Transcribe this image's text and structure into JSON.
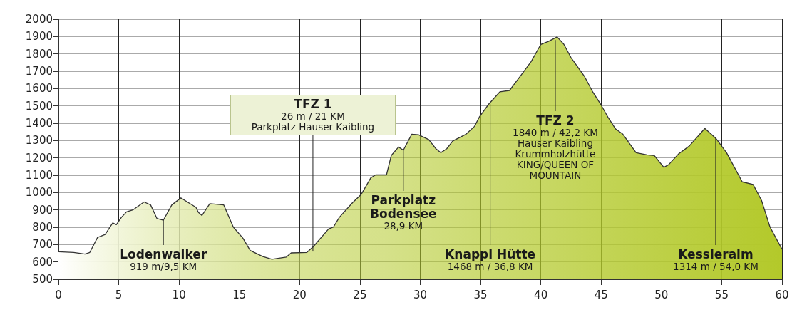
{
  "chart_data": {
    "type": "area",
    "color": "#b3c92a",
    "grid": true,
    "x": [
      0,
      1.26,
      2.2,
      2.6,
      3.24,
      3.87,
      4.5,
      4.8,
      5.23,
      5.65,
      6.17,
      7.1,
      7.64,
      8.16,
      8.7,
      9.4,
      10.15,
      11.4,
      11.6,
      11.9,
      12.55,
      13.7,
      14.5,
      15.3,
      15.9,
      16.95,
      17.7,
      18.9,
      19.3,
      20.6,
      21.13,
      22.4,
      22.8,
      23.3,
      24.4,
      25.1,
      25.9,
      26.3,
      27.2,
      27.6,
      28.2,
      28.6,
      29.3,
      29.85,
      30.7,
      31.3,
      31.7,
      32.2,
      32.7,
      33.8,
      34.5,
      34.9,
      35.7,
      36.6,
      37.4,
      38.3,
      39.2,
      40.0,
      40.6,
      41.35,
      41.9,
      42.5,
      43.6,
      44.3,
      45.0,
      45.6,
      46.2,
      46.8,
      47.9,
      48.8,
      49.4,
      50.2,
      50.6,
      51.4,
      52.3,
      53.6,
      54.5,
      55.4,
      56.7,
      57.6,
      58.3,
      59.0,
      60.0
    ],
    "values": [
      659,
      655,
      645,
      655,
      741,
      758,
      825,
      815,
      858,
      889,
      900,
      946,
      929,
      851,
      841,
      929,
      969,
      915,
      886,
      868,
      936,
      929,
      801,
      737,
      666,
      631,
      616,
      628,
      652,
      655,
      688,
      790,
      801,
      858,
      943,
      989,
      1085,
      1102,
      1102,
      1214,
      1263,
      1245,
      1337,
      1334,
      1306,
      1253,
      1230,
      1253,
      1298,
      1337,
      1382,
      1436,
      1512,
      1581,
      1589,
      1672,
      1756,
      1855,
      1871,
      1898,
      1856,
      1779,
      1672,
      1581,
      1505,
      1431,
      1367,
      1337,
      1230,
      1218,
      1214,
      1146,
      1161,
      1222,
      1268,
      1370,
      1314,
      1230,
      1062,
      1047,
      955,
      802,
      673
    ],
    "xlim": [
      0,
      60
    ],
    "xticks": [
      0,
      5,
      10,
      15,
      20,
      25,
      30,
      35,
      40,
      45,
      50,
      55,
      60
    ],
    "ylim": [
      500,
      2000
    ],
    "yticks": [
      500,
      600,
      700,
      800,
      900,
      1000,
      1100,
      1200,
      1300,
      1400,
      1500,
      1600,
      1700,
      1800,
      1900,
      2000
    ],
    "annotations": [
      {
        "text": "Lodenwalker\n919 m/9,5 KM",
        "x": 8.7,
        "y": 841
      },
      {
        "text": "TFZ 1\n26 m / 21 KM\nParkplatz Hauser Kaibling",
        "x": 21.1,
        "y": 660
      },
      {
        "text": "Parkplatz\nBodensee\n28,9 KM",
        "x": 28.6,
        "y": 1245
      },
      {
        "text": "Knappl Hütte\n1468 m / 36,8 KM",
        "x": 35.8,
        "y": 1512
      },
      {
        "text": "TFZ 2\n1840 m / 42,2 KM\nHauser Kaibling\nKrummholzhütte\nKING/QUEEN OF\nMOUNTAIN",
        "x": 41.2,
        "y": 1880
      },
      {
        "text": "Kessleralm\n1314 m / 54,0 KM",
        "x": 54.5,
        "y": 1314
      }
    ]
  }
}
